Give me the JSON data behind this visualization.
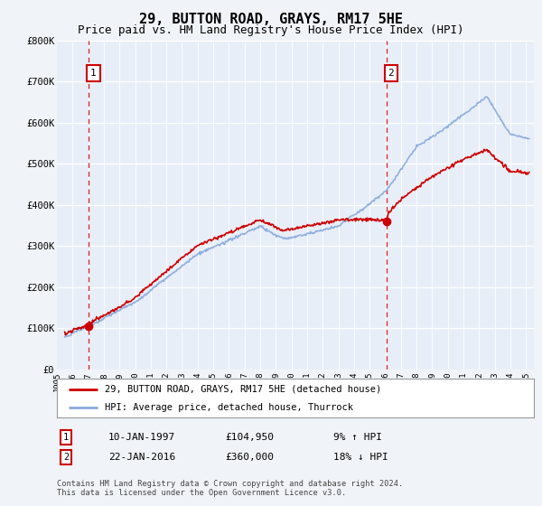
{
  "title": "29, BUTTON ROAD, GRAYS, RM17 5HE",
  "subtitle": "Price paid vs. HM Land Registry's House Price Index (HPI)",
  "legend_line1": "29, BUTTON ROAD, GRAYS, RM17 5HE (detached house)",
  "legend_line2": "HPI: Average price, detached house, Thurrock",
  "annotation1_label": "1",
  "annotation1_date": "10-JAN-1997",
  "annotation1_price": "£104,950",
  "annotation1_hpi": "9% ↑ HPI",
  "annotation2_label": "2",
  "annotation2_date": "22-JAN-2016",
  "annotation2_price": "£360,000",
  "annotation2_hpi": "18% ↓ HPI",
  "footer": "Contains HM Land Registry data © Crown copyright and database right 2024.\nThis data is licensed under the Open Government Licence v3.0.",
  "property_color": "#cc0000",
  "hpi_color": "#88aadd",
  "vline_color": "#cc0000",
  "background_color": "#f0f4f8",
  "plot_bg_color": "#e8eef8",
  "grid_color": "#c8d4e8",
  "legend_bg": "#ffffff",
  "ylim": [
    0,
    800000
  ],
  "xlim_start": 1995.3,
  "xlim_end": 2025.5,
  "sale1_x": 1997.04,
  "sale1_y": 104950,
  "sale2_x": 2016.06,
  "sale2_y": 360000,
  "title_fontsize": 11,
  "subtitle_fontsize": 9
}
